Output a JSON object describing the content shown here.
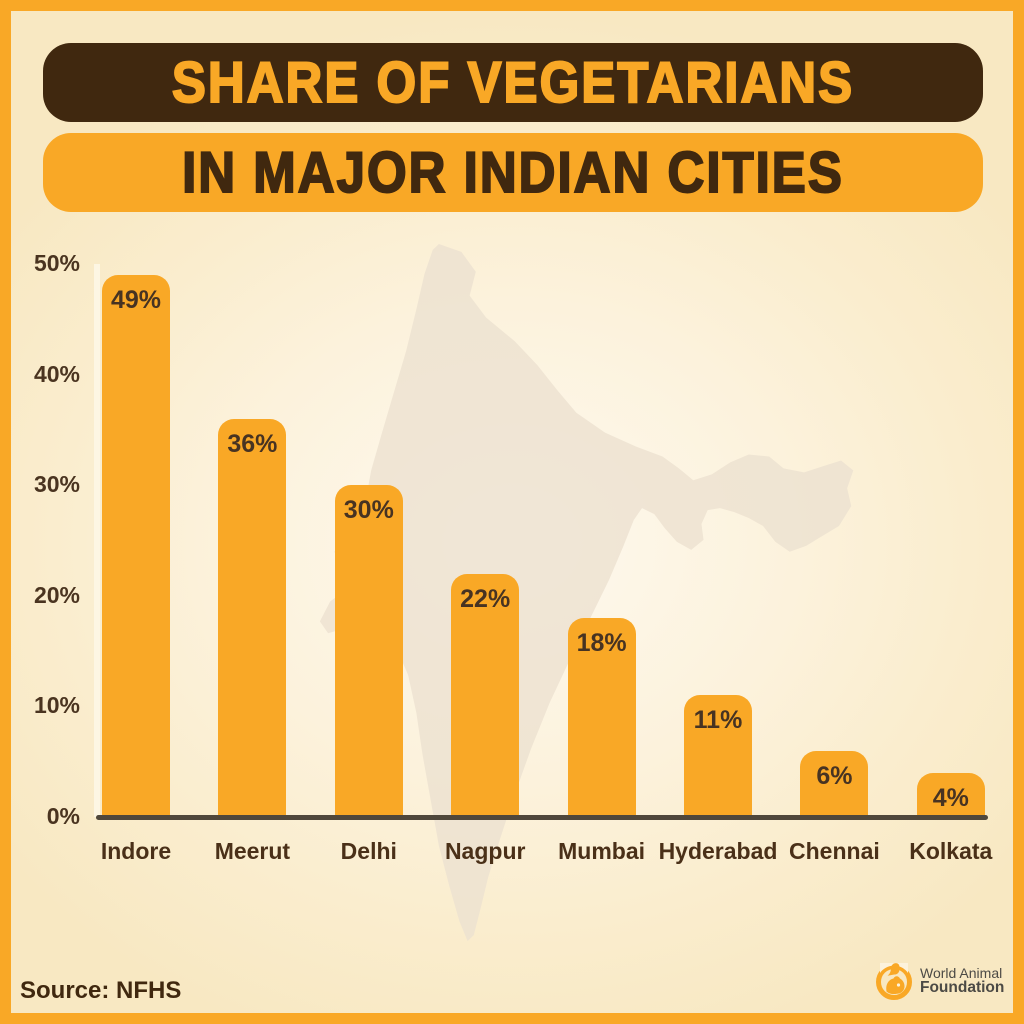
{
  "title": {
    "line1": "SHARE OF VEGETARIANS",
    "line2": "IN MAJOR INDIAN CITIES"
  },
  "chart_data": {
    "type": "bar",
    "title": "Share of Vegetarians in Major Indian Cities",
    "categories": [
      "Indore",
      "Meerut",
      "Delhi",
      "Nagpur",
      "Mumbai",
      "Hyderabad",
      "Chennai",
      "Kolkata"
    ],
    "values": [
      49,
      36,
      30,
      22,
      18,
      11,
      6,
      4
    ],
    "bar_labels": [
      "49%",
      "36%",
      "30%",
      "22%",
      "18%",
      "11%",
      "6%",
      "4%"
    ],
    "y_ticks": [
      "50%",
      "40%",
      "30%",
      "20%",
      "10%",
      "0%"
    ],
    "ylim": [
      0,
      50
    ],
    "xlabel": "",
    "ylabel": "",
    "grid": false,
    "legend": "none",
    "bar_color": "#F9A826",
    "value_label_position": "inside-top",
    "background_watermark": "india-map-silhouette"
  },
  "footer": {
    "source": "Source: NFHS",
    "logo": {
      "line1": "World Animal",
      "line2": "Foundation",
      "icon": "bird-and-dog-circle-icon"
    }
  },
  "colors": {
    "accent_orange": "#F9A826",
    "dark_brown": "#40280F",
    "text_brown": "#4A3420",
    "cream_background": "#FBEFD4",
    "axis_line": "#4F473B",
    "map_watermark": "#EDE2D1"
  }
}
